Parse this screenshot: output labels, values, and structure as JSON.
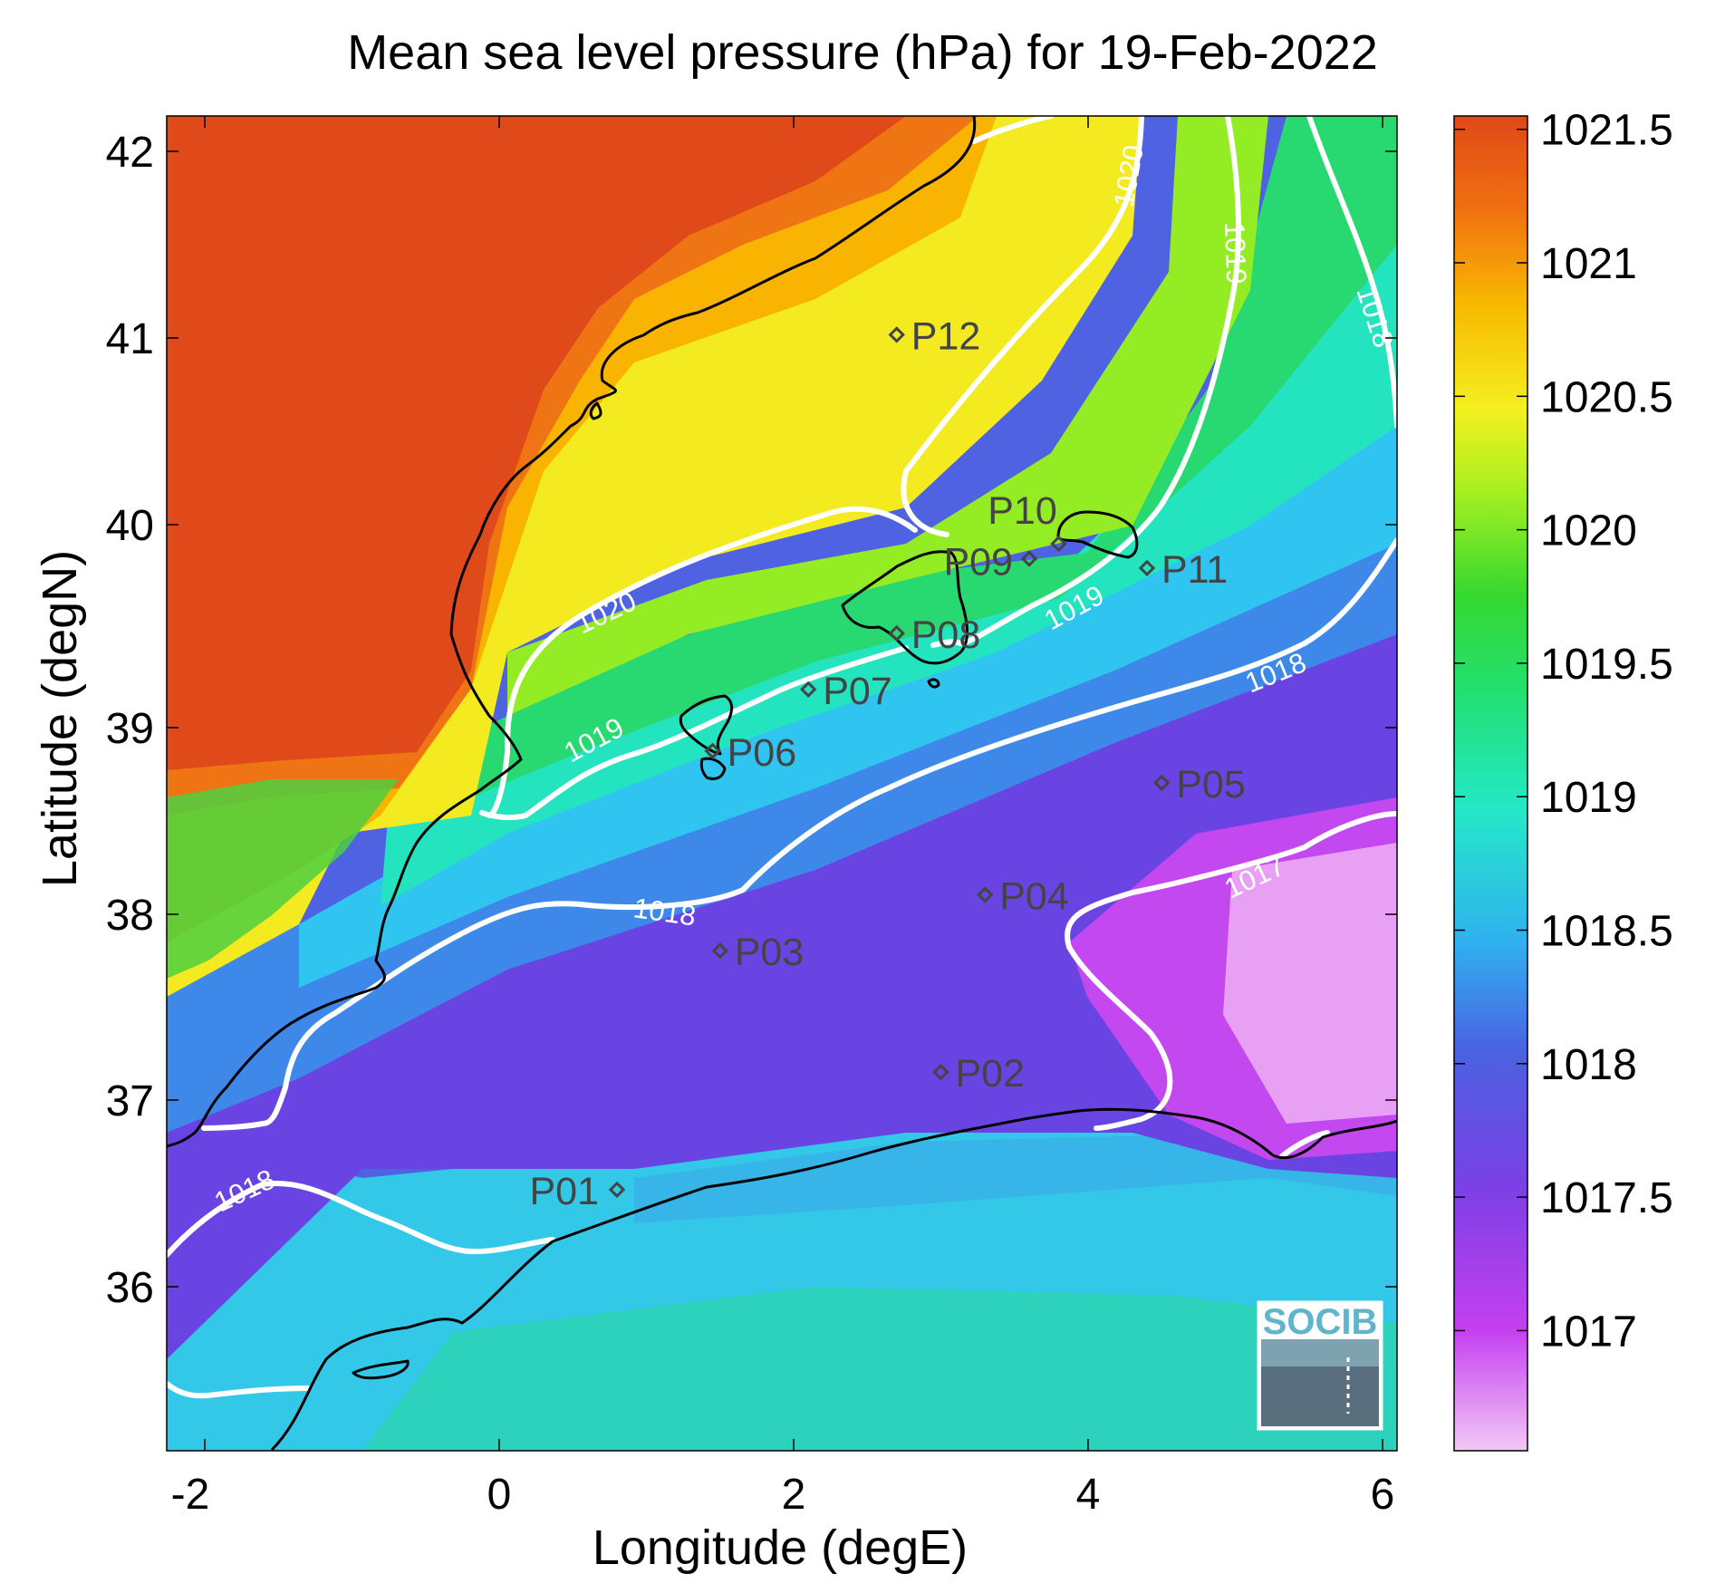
{
  "title": "Mean sea level pressure (hPa) for 19-Feb-2022",
  "xlabel": "Longitude (degE)",
  "ylabel": "Latitude (degN)",
  "x_ticks": [
    "-2",
    "0",
    "2",
    "4",
    "6"
  ],
  "y_ticks": [
    "36",
    "37",
    "38",
    "39",
    "40",
    "41",
    "42"
  ],
  "colorbar_ticks": [
    "1017",
    "1017.5",
    "1018",
    "1018.5",
    "1019",
    "1019.5",
    "1020",
    "1020.5",
    "1021",
    "1021.5"
  ],
  "contour_labels": [
    "1020",
    "1019",
    "1018",
    "1020",
    "1019",
    "1019",
    "1018",
    "1017",
    "1018",
    "1018"
  ],
  "points": [
    {
      "label": "P01",
      "lon": 0.8,
      "lat": 36.52
    },
    {
      "label": "P02",
      "lon": 3.0,
      "lat": 37.15
    },
    {
      "label": "P03",
      "lon": 1.5,
      "lat": 37.8
    },
    {
      "label": "P04",
      "lon": 3.3,
      "lat": 38.1
    },
    {
      "label": "P05",
      "lon": 4.5,
      "lat": 38.7
    },
    {
      "label": "P06",
      "lon": 1.45,
      "lat": 38.87
    },
    {
      "label": "P07",
      "lon": 2.1,
      "lat": 39.2
    },
    {
      "label": "P08",
      "lon": 2.7,
      "lat": 39.5
    },
    {
      "label": "P09",
      "lon": 3.6,
      "lat": 39.9
    },
    {
      "label": "P10",
      "lon": 3.8,
      "lat": 39.98
    },
    {
      "label": "P11",
      "lon": 4.4,
      "lat": 39.85
    },
    {
      "label": "P12",
      "lon": 2.7,
      "lat": 41.1
    }
  ],
  "logo_text": "SOCIB",
  "colors": {
    "contour": "#ffffff",
    "coastline": "#000000",
    "point_marker": "#444444",
    "colormap": [
      "#f0c0f0",
      "#c040f0",
      "#6a40e0",
      "#4060e0",
      "#30c8f0",
      "#20e8a8",
      "#30d830",
      "#a0f020",
      "#f8f020",
      "#f8b000",
      "#f07010",
      "#e04818"
    ]
  }
}
